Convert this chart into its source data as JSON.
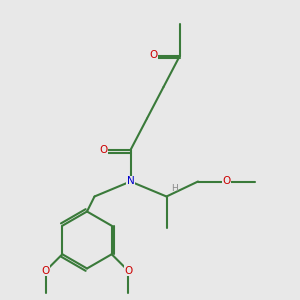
{
  "background_color": "#e8e8e8",
  "bond_color": "#3a7a3a",
  "bond_width": 1.5,
  "atom_colors": {
    "O": "#cc0000",
    "N": "#0000cc",
    "H": "#888888"
  },
  "figsize": [
    3.0,
    3.0
  ],
  "dpi": 100
}
